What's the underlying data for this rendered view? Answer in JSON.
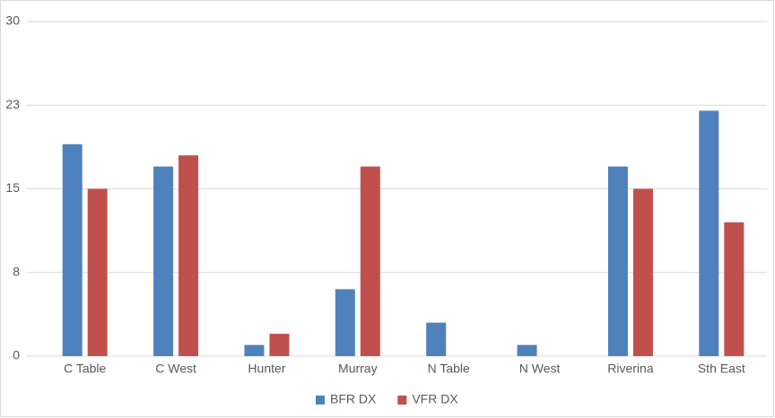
{
  "chart_data": {
    "type": "bar",
    "categories": [
      "C Table",
      "C West",
      "Hunter",
      "Murray",
      "N Table",
      "N West",
      "Riverina",
      "Sth East"
    ],
    "series": [
      {
        "name": "BFR DX",
        "color": "#4f81bd",
        "values": [
          19,
          17,
          1,
          6,
          3,
          1,
          17,
          22
        ]
      },
      {
        "name": "VFR DX",
        "color": "#c0504d",
        "values": [
          15,
          18,
          2,
          17,
          0,
          0,
          15,
          12
        ]
      }
    ],
    "ylim": [
      0,
      30
    ],
    "yticks": [
      0,
      {
        "value": 7.5,
        "label": "8"
      },
      15,
      {
        "value": 22.5,
        "label": "23"
      },
      30
    ],
    "grid": true,
    "legend": "bottom"
  }
}
